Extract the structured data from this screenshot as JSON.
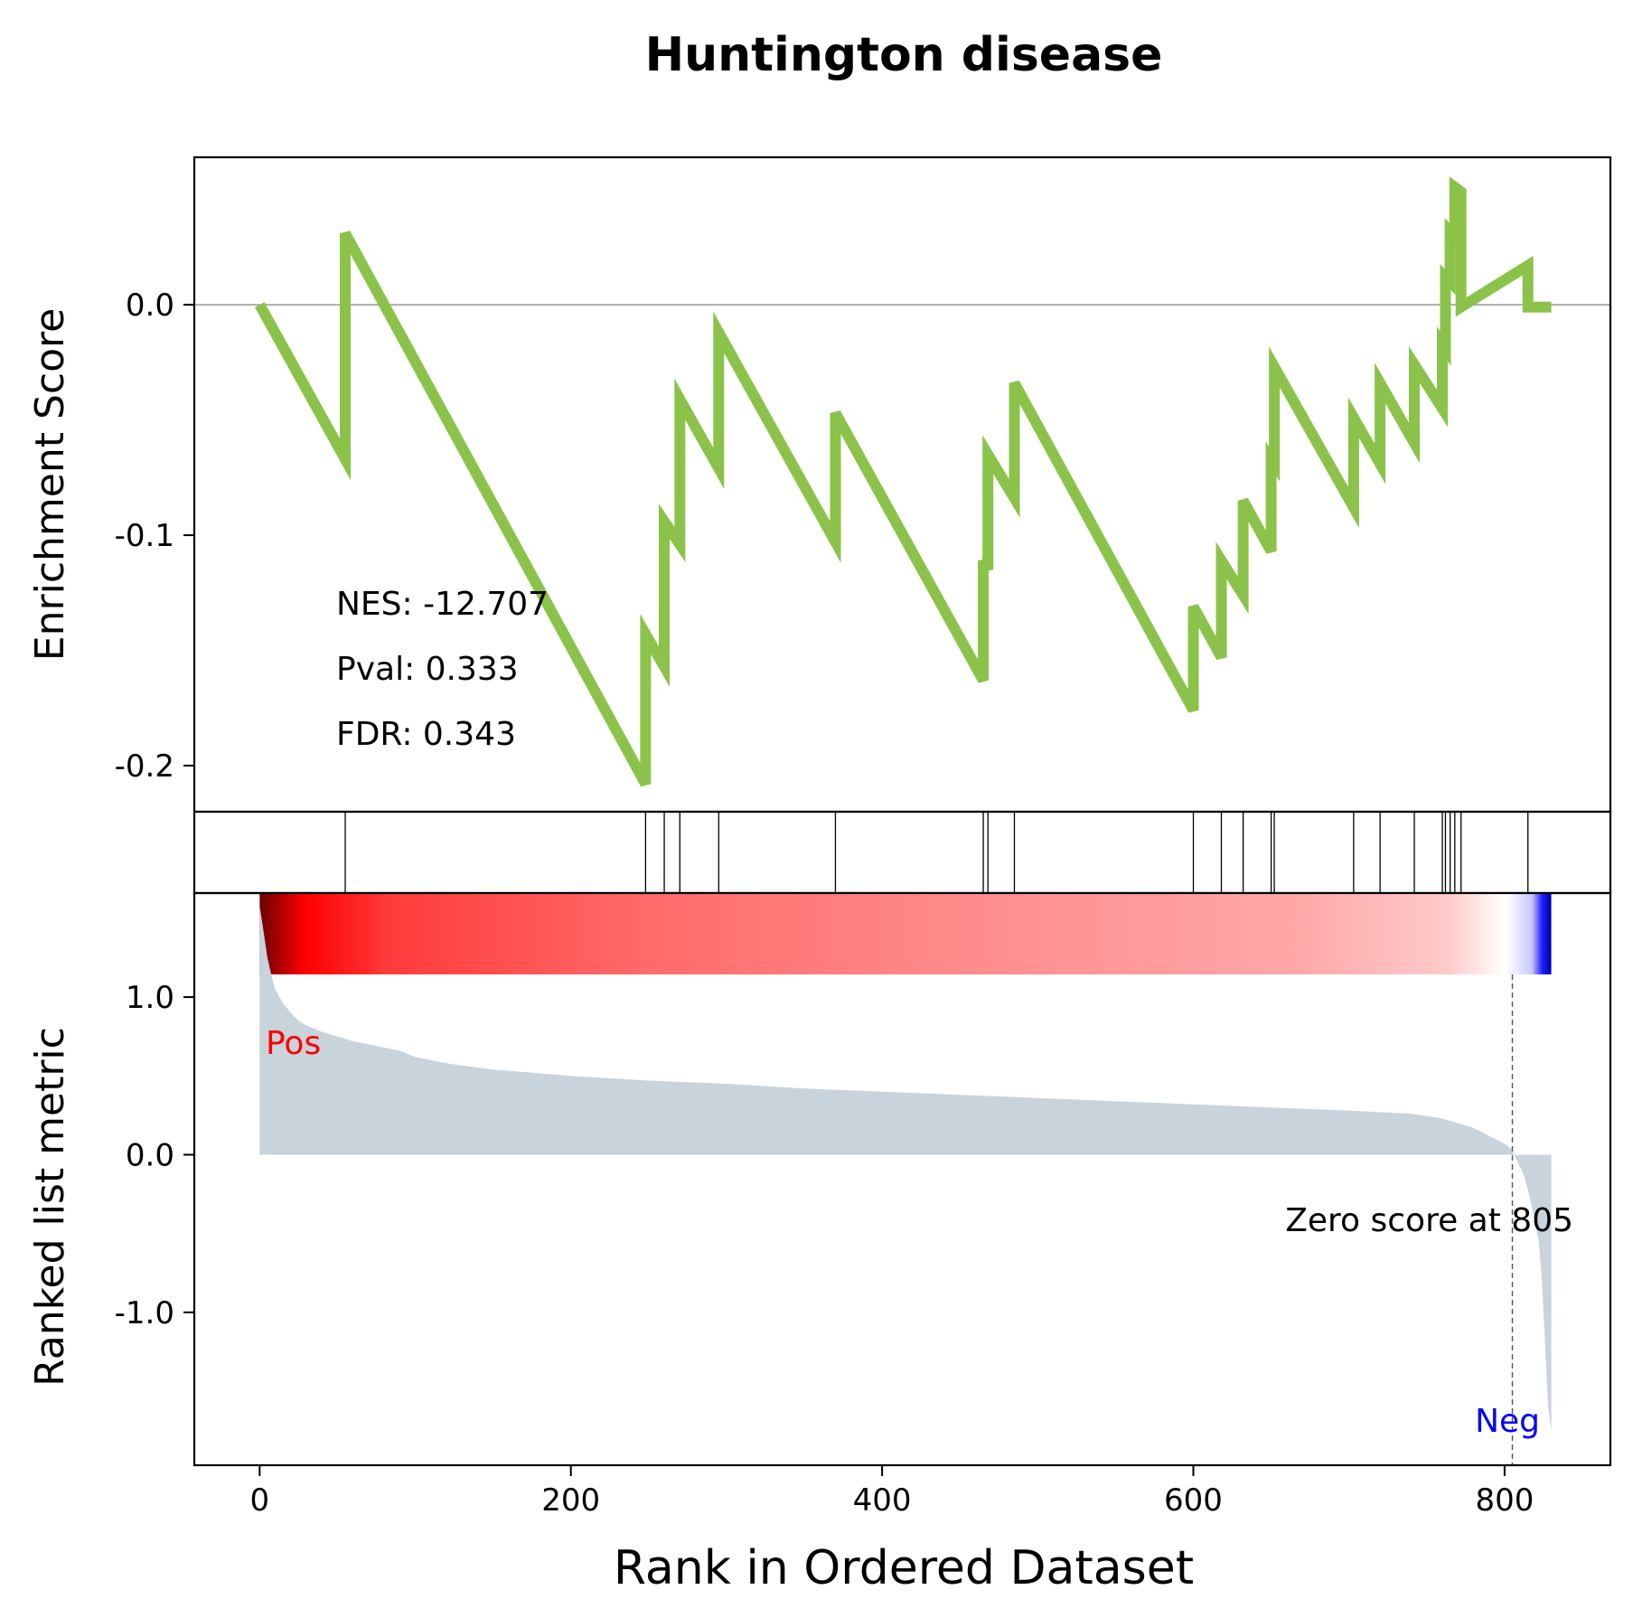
{
  "chart_data": {
    "type": "line",
    "title": "Huntington disease",
    "xlabel": "Rank in Ordered Dataset",
    "x_ticks": [
      0,
      200,
      400,
      600,
      800
    ],
    "xlim": [
      -42,
      868
    ],
    "n_genes": 830,
    "es_panel": {
      "ylabel": "Enrichment Score",
      "ylim": [
        -0.22,
        0.064
      ],
      "y_ticks": [
        0.0,
        -0.1,
        -0.2
      ],
      "y_tick_labels": [
        "0.0",
        "-0.1",
        "-0.2"
      ],
      "line_color": "#8bc34a",
      "stats": {
        "nes": "NES: -12.707",
        "pval": "Pval: 0.333",
        "fdr": "FDR: 0.343"
      },
      "series": [
        {
          "x": [
            0,
            55,
            55,
            248,
            248,
            260,
            260,
            270,
            270,
            295,
            295,
            370,
            370,
            465,
            465,
            468,
            468,
            485,
            485,
            600,
            600,
            618,
            618,
            632,
            632,
            650,
            650,
            652,
            652,
            703,
            703,
            720,
            720,
            742,
            742,
            760,
            760,
            762,
            762,
            765,
            765,
            768,
            768,
            772,
            772,
            815,
            815,
            830
          ],
          "y": [
            0.0,
            -0.067,
            0.031,
            -0.208,
            -0.143,
            -0.157,
            -0.094,
            -0.104,
            -0.041,
            -0.071,
            -0.012,
            -0.103,
            -0.047,
            -0.163,
            -0.111,
            -0.115,
            -0.065,
            -0.084,
            -0.034,
            -0.176,
            -0.131,
            -0.153,
            -0.111,
            -0.126,
            -0.085,
            -0.107,
            -0.067,
            -0.069,
            -0.027,
            -0.088,
            -0.049,
            -0.069,
            -0.034,
            -0.06,
            -0.026,
            -0.045,
            -0.017,
            -0.019,
            0.012,
            0.01,
            0.032,
            0.03,
            0.051,
            0.049,
            -0.001,
            0.017,
            -0.001,
            -0.001
          ]
        }
      ]
    },
    "hits": [
      55,
      248,
      260,
      270,
      295,
      370,
      465,
      468,
      485,
      600,
      618,
      632,
      650,
      652,
      703,
      720,
      742,
      760,
      762,
      765,
      768,
      772,
      815
    ],
    "ranked_panel": {
      "ylabel": "Ranked list metric",
      "ylim": [
        -1.97,
        1.66
      ],
      "y_ticks": [
        1.0,
        0.0,
        -1.0
      ],
      "y_tick_labels": [
        "1.0",
        "0.0",
        "-1.0"
      ],
      "fill_color": "#c8d3dc",
      "zero_score_rank": 805,
      "zero_label": "Zero score at 805",
      "pos_label": "Pos",
      "neg_label": "Neg",
      "pos_color": "#ff0000",
      "neg_color": "#0000ff",
      "metric": {
        "x": [
          0,
          2,
          5,
          8,
          10,
          15,
          20,
          25,
          30,
          40,
          50,
          60,
          70,
          80,
          90,
          100,
          120,
          150,
          200,
          250,
          300,
          350,
          400,
          450,
          500,
          550,
          600,
          650,
          700,
          740,
          760,
          780,
          790,
          800,
          805,
          808,
          812,
          815,
          818,
          820,
          822,
          824,
          826,
          828,
          830
        ],
        "y": [
          1.58,
          1.45,
          1.25,
          1.12,
          1.05,
          0.96,
          0.9,
          0.85,
          0.82,
          0.78,
          0.75,
          0.72,
          0.7,
          0.68,
          0.66,
          0.62,
          0.58,
          0.54,
          0.5,
          0.47,
          0.45,
          0.42,
          0.4,
          0.38,
          0.36,
          0.34,
          0.32,
          0.3,
          0.28,
          0.26,
          0.23,
          0.17,
          0.12,
          0.07,
          0.03,
          -0.04,
          -0.12,
          -0.22,
          -0.35,
          -0.45,
          -0.55,
          -0.8,
          -1.2,
          -1.6,
          -1.75
        ]
      }
    }
  }
}
